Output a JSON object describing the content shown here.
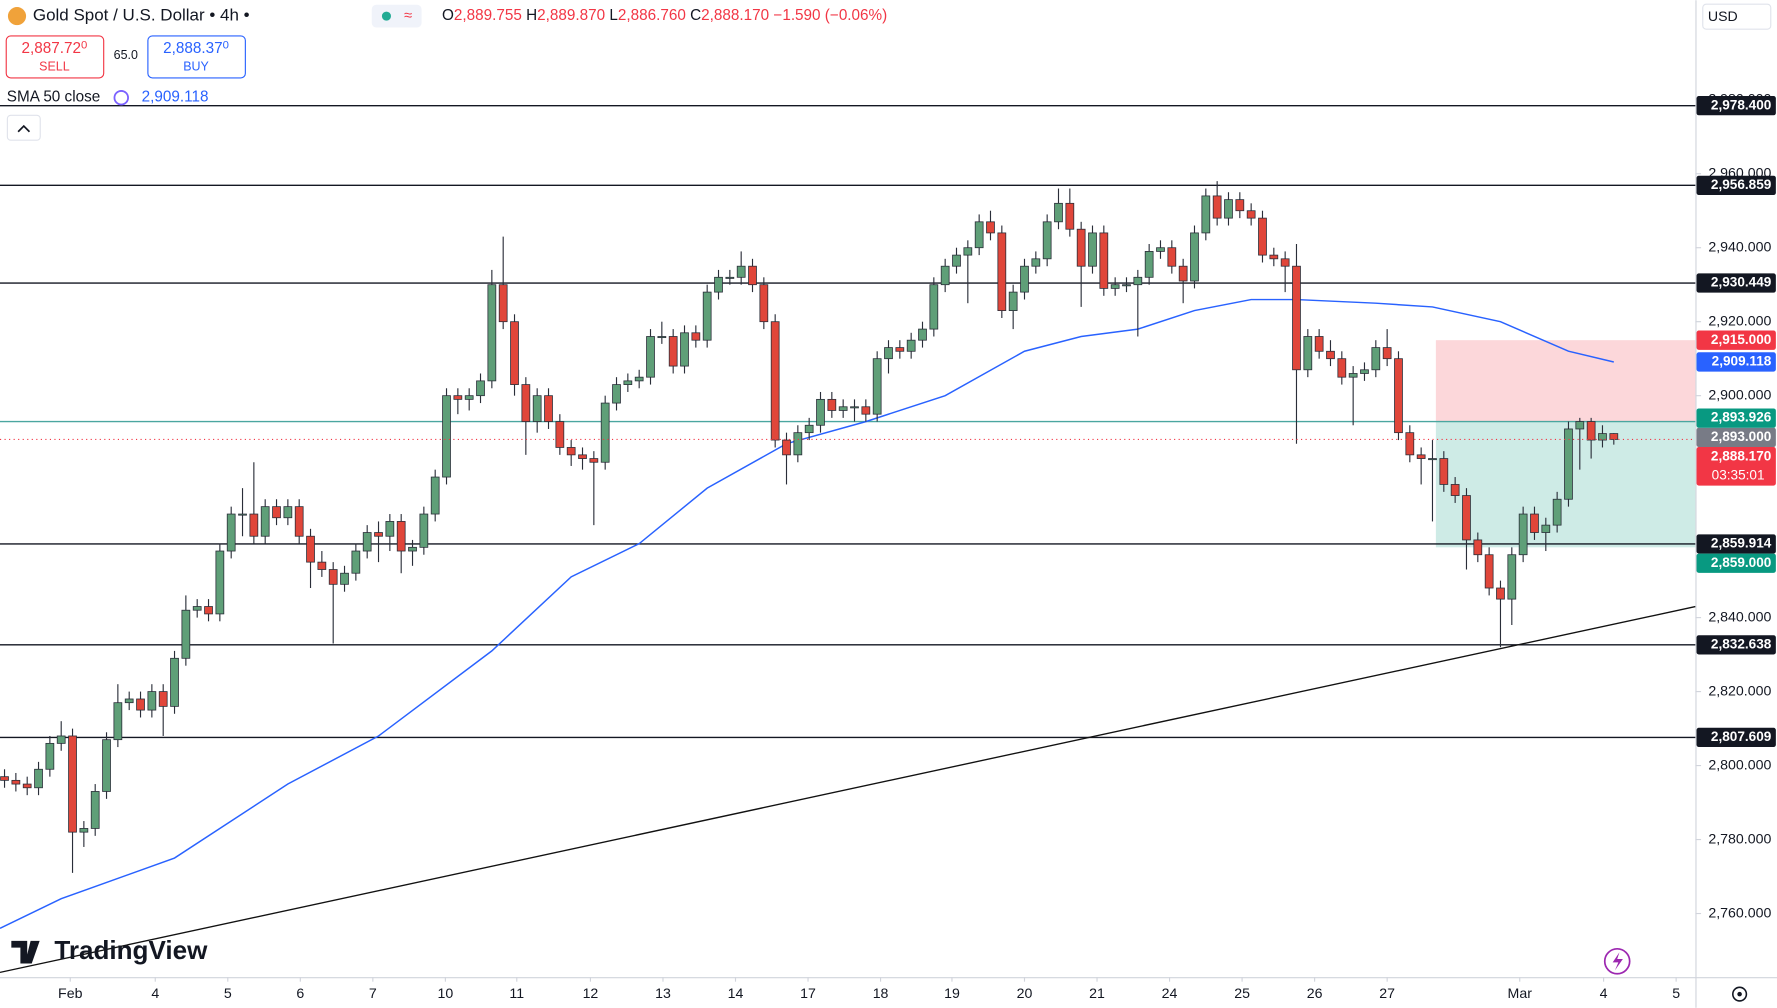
{
  "header": {
    "symbol": "Gold Spot / U.S. Dollar • 4h •",
    "ohlc": [
      {
        "k": "O",
        "v": "2,889.755"
      },
      {
        "k": "H",
        "v": "2,889.870"
      },
      {
        "k": "L",
        "v": "2,886.760"
      },
      {
        "k": "C",
        "v": "2,888.170"
      }
    ],
    "change": "−1.590 (−0.06%)",
    "sell": {
      "price": "2,887.72",
      "sup": "0",
      "label": "SELL"
    },
    "spread": "65.0",
    "buy": {
      "price": "2,888.37",
      "sup": "0",
      "label": "BUY"
    },
    "currency": "USD",
    "brand": "TradingView"
  },
  "chart_data": {
    "type": "candlestick",
    "up_color": "#5f9f78",
    "down_color": "#e0463a",
    "xlim": [
      -0.4,
      149.2
    ],
    "ylim": [
      2742.8,
      3006.9
    ],
    "xticks": [
      {
        "value": 5.8,
        "label": "Feb"
      },
      {
        "value": 13.3,
        "label": "4"
      },
      {
        "value": 19.7,
        "label": "5"
      },
      {
        "value": 26.1,
        "label": "6"
      },
      {
        "value": 32.5,
        "label": "7"
      },
      {
        "value": 38.9,
        "label": "10"
      },
      {
        "value": 45.2,
        "label": "11"
      },
      {
        "value": 51.7,
        "label": "12"
      },
      {
        "value": 58.1,
        "label": "13"
      },
      {
        "value": 64.5,
        "label": "14"
      },
      {
        "value": 70.9,
        "label": "17"
      },
      {
        "value": 77.3,
        "label": "18"
      },
      {
        "value": 83.6,
        "label": "19"
      },
      {
        "value": 90,
        "label": "20"
      },
      {
        "value": 96.4,
        "label": "21"
      },
      {
        "value": 102.8,
        "label": "24"
      },
      {
        "value": 109.2,
        "label": "25"
      },
      {
        "value": 115.6,
        "label": "26"
      },
      {
        "value": 122,
        "label": "27"
      },
      {
        "value": 133.7,
        "label": "Mar"
      },
      {
        "value": 141.1,
        "label": "4"
      },
      {
        "value": 147.5,
        "label": "5"
      }
    ],
    "yticks": [
      {
        "value": 2760,
        "label": "2,760.000"
      },
      {
        "value": 2780,
        "label": "2,780.000"
      },
      {
        "value": 2800,
        "label": "2,800.000"
      },
      {
        "value": 2820,
        "label": "2,820.000"
      },
      {
        "value": 2840,
        "label": "2,840.000"
      },
      {
        "value": 2860,
        "label": "2,860.000"
      },
      {
        "value": 2880,
        "label": "2,880.000"
      },
      {
        "value": 2900,
        "label": "2,900.000"
      },
      {
        "value": 2920,
        "label": "2,920.000"
      },
      {
        "value": 2940,
        "label": "2,940.000"
      },
      {
        "value": 2960,
        "label": "2,960.000"
      },
      {
        "value": 2980,
        "label": "2,980.000"
      }
    ],
    "ohlc": [
      [
        2797,
        2799,
        2794,
        2796
      ],
      [
        2796,
        2798,
        2793,
        2795
      ],
      [
        2795,
        2797,
        2792,
        2794
      ],
      [
        2794,
        2801,
        2792,
        2799
      ],
      [
        2799,
        2808,
        2797,
        2806
      ],
      [
        2806,
        2812,
        2804,
        2808
      ],
      [
        2808,
        2810,
        2771,
        2782
      ],
      [
        2782,
        2785,
        2778,
        2783
      ],
      [
        2783,
        2795,
        2781,
        2793
      ],
      [
        2793,
        2809,
        2791,
        2807
      ],
      [
        2807,
        2822,
        2805,
        2817
      ],
      [
        2817,
        2820,
        2815,
        2818
      ],
      [
        2818,
        2820,
        2813,
        2815
      ],
      [
        2815,
        2822,
        2813,
        2820
      ],
      [
        2820,
        2822,
        2808,
        2816
      ],
      [
        2816,
        2831,
        2814,
        2829
      ],
      [
        2829,
        2846,
        2827,
        2842
      ],
      [
        2842,
        2845,
        2840,
        2843
      ],
      [
        2843,
        2845,
        2839,
        2841
      ],
      [
        2841,
        2860,
        2839,
        2858
      ],
      [
        2858,
        2870,
        2856,
        2868
      ],
      [
        2868,
        2875,
        2862,
        2868
      ],
      [
        2868,
        2882,
        2860,
        2862
      ],
      [
        2862,
        2872,
        2860,
        2870
      ],
      [
        2870,
        2872,
        2865,
        2867
      ],
      [
        2867,
        2872,
        2865,
        2870
      ],
      [
        2870,
        2872,
        2860,
        2862
      ],
      [
        2862,
        2864,
        2848,
        2855
      ],
      [
        2855,
        2858,
        2851,
        2853
      ],
      [
        2853,
        2855,
        2833,
        2849
      ],
      [
        2849,
        2854,
        2847,
        2852
      ],
      [
        2852,
        2860,
        2850,
        2858
      ],
      [
        2858,
        2865,
        2856,
        2863
      ],
      [
        2863,
        2866,
        2855,
        2862
      ],
      [
        2862,
        2868,
        2858,
        2866
      ],
      [
        2866,
        2868,
        2852,
        2858
      ],
      [
        2858,
        2861,
        2854,
        2859
      ],
      [
        2859,
        2870,
        2857,
        2868
      ],
      [
        2868,
        2880,
        2866,
        2878
      ],
      [
        2878,
        2902,
        2876,
        2900
      ],
      [
        2900,
        2902,
        2895,
        2899
      ],
      [
        2899,
        2902,
        2896,
        2900
      ],
      [
        2900,
        2906,
        2898,
        2904
      ],
      [
        2904,
        2934,
        2902,
        2930
      ],
      [
        2930,
        2943,
        2918,
        2920
      ],
      [
        2920,
        2922,
        2900,
        2903
      ],
      [
        2903,
        2905,
        2884,
        2893
      ],
      [
        2893,
        2902,
        2890,
        2900
      ],
      [
        2900,
        2902,
        2891,
        2893
      ],
      [
        2893,
        2895,
        2884,
        2886
      ],
      [
        2886,
        2888,
        2881,
        2884
      ],
      [
        2884,
        2886,
        2880,
        2883
      ],
      [
        2883,
        2885,
        2865,
        2882
      ],
      [
        2882,
        2900,
        2880,
        2898
      ],
      [
        2898,
        2905,
        2896,
        2903
      ],
      [
        2903,
        2906,
        2901,
        2904
      ],
      [
        2904,
        2907,
        2902,
        2905
      ],
      [
        2905,
        2918,
        2903,
        2916
      ],
      [
        2916,
        2920,
        2914,
        2916
      ],
      [
        2916,
        2918,
        2906,
        2908
      ],
      [
        2908,
        2919,
        2906,
        2917
      ],
      [
        2917,
        2919,
        2913,
        2915
      ],
      [
        2915,
        2930,
        2913,
        2928
      ],
      [
        2928,
        2934,
        2926,
        2932
      ],
      [
        2932,
        2934,
        2930,
        2932
      ],
      [
        2932,
        2939,
        2930,
        2935
      ],
      [
        2935,
        2937,
        2928,
        2930
      ],
      [
        2930,
        2932,
        2918,
        2920
      ],
      [
        2920,
        2922,
        2886,
        2888
      ],
      [
        2888,
        2890,
        2876,
        2884
      ],
      [
        2884,
        2892,
        2882,
        2890
      ],
      [
        2890,
        2894,
        2888,
        2892
      ],
      [
        2892,
        2901,
        2890,
        2899
      ],
      [
        2899,
        2901,
        2894,
        2896
      ],
      [
        2896,
        2899,
        2894,
        2897
      ],
      [
        2897,
        2899,
        2893,
        2897
      ],
      [
        2897,
        2899,
        2893,
        2895
      ],
      [
        2895,
        2912,
        2893,
        2910
      ],
      [
        2910,
        2915,
        2906,
        2913
      ],
      [
        2913,
        2915,
        2910,
        2912
      ],
      [
        2912,
        2917,
        2910,
        2915
      ],
      [
        2915,
        2920,
        2913,
        2918
      ],
      [
        2918,
        2932,
        2916,
        2930
      ],
      [
        2930,
        2937,
        2928,
        2935
      ],
      [
        2935,
        2940,
        2933,
        2938
      ],
      [
        2938,
        2942,
        2925,
        2940
      ],
      [
        2940,
        2949,
        2938,
        2947
      ],
      [
        2947,
        2950,
        2942,
        2944
      ],
      [
        2944,
        2946,
        2921,
        2923
      ],
      [
        2923,
        2930,
        2918,
        2928
      ],
      [
        2928,
        2937,
        2926,
        2935
      ],
      [
        2935,
        2939,
        2933,
        2937
      ],
      [
        2937,
        2949,
        2935,
        2947
      ],
      [
        2947,
        2956,
        2945,
        2952
      ],
      [
        2952,
        2956,
        2943,
        2945
      ],
      [
        2945,
        2947,
        2924,
        2935
      ],
      [
        2935,
        2946,
        2933,
        2944
      ],
      [
        2944,
        2946,
        2927,
        2929
      ],
      [
        2929,
        2932,
        2927,
        2930
      ],
      [
        2930,
        2932,
        2928,
        2930
      ],
      [
        2930,
        2934,
        2916,
        2932
      ],
      [
        2932,
        2941,
        2930,
        2939
      ],
      [
        2939,
        2942,
        2937,
        2940
      ],
      [
        2940,
        2942,
        2933,
        2935
      ],
      [
        2935,
        2937,
        2925,
        2931
      ],
      [
        2931,
        2946,
        2929,
        2944
      ],
      [
        2944,
        2956,
        2942,
        2954
      ],
      [
        2954,
        2958,
        2946,
        2948
      ],
      [
        2948,
        2955,
        2946,
        2953
      ],
      [
        2953,
        2955,
        2948,
        2950
      ],
      [
        2950,
        2952,
        2946,
        2948
      ],
      [
        2948,
        2950,
        2936,
        2938
      ],
      [
        2938,
        2940,
        2935,
        2937
      ],
      [
        2937,
        2939,
        2928,
        2935
      ],
      [
        2935,
        2941,
        2887,
        2907
      ],
      [
        2907,
        2918,
        2905,
        2916
      ],
      [
        2916,
        2918,
        2910,
        2912
      ],
      [
        2912,
        2915,
        2908,
        2910
      ],
      [
        2910,
        2912,
        2903,
        2905
      ],
      [
        2905,
        2908,
        2892,
        2906
      ],
      [
        2906,
        2909,
        2904,
        2907
      ],
      [
        2907,
        2915,
        2905,
        2913
      ],
      [
        2913,
        2918,
        2908,
        2910
      ],
      [
        2910,
        2912,
        2888,
        2890
      ],
      [
        2890,
        2892,
        2882,
        2884
      ],
      [
        2884,
        2886,
        2876,
        2883
      ],
      [
        2883,
        2888,
        2866,
        2883
      ],
      [
        2883,
        2885,
        2874,
        2876
      ],
      [
        2876,
        2878,
        2871,
        2873
      ],
      [
        2873,
        2875,
        2853,
        2861
      ],
      [
        2861,
        2863,
        2855,
        2857
      ],
      [
        2857,
        2859,
        2846,
        2848
      ],
      [
        2848,
        2850,
        2832,
        2845
      ],
      [
        2845,
        2859,
        2838,
        2857
      ],
      [
        2857,
        2870,
        2855,
        2868
      ],
      [
        2868,
        2870,
        2861,
        2863
      ],
      [
        2863,
        2867,
        2858,
        2865
      ],
      [
        2865,
        2874,
        2863,
        2872
      ],
      [
        2872,
        2893,
        2870,
        2891
      ],
      [
        2891,
        2894,
        2880,
        2893
      ],
      [
        2893,
        2894,
        2883,
        2888
      ],
      [
        2888,
        2892,
        2886,
        2889.755
      ],
      [
        2889.755,
        2889.87,
        2886.76,
        2888.17
      ]
    ],
    "sma": {
      "name": "SMA 50 close",
      "color": "#2962ff",
      "value_label": "2,909.118",
      "x": [
        -0.4,
        5,
        15,
        25,
        33,
        43,
        50,
        56,
        62,
        69,
        76,
        83,
        90,
        95,
        100,
        105,
        110,
        114,
        121,
        126,
        132,
        138,
        142
      ],
      "values": [
        2756,
        2764,
        2775,
        2795,
        2808,
        2831,
        2851,
        2860,
        2875,
        2887,
        2893,
        2900,
        2912,
        2916,
        2918,
        2923,
        2926,
        2926,
        2925,
        2924,
        2920,
        2912,
        2909.118
      ]
    },
    "trendline": {
      "color": "#111111",
      "x": [
        -0.4,
        149.2
      ],
      "values": [
        2744.1,
        2843.0
      ]
    },
    "levels": [
      {
        "value": 2978.4,
        "label": "2,978.400"
      },
      {
        "value": 2956.859,
        "label": "2,956.859"
      },
      {
        "value": 2930.449,
        "label": "2,930.449"
      },
      {
        "value": 2859.914,
        "label": "2,859.914"
      },
      {
        "value": 2832.638,
        "label": "2,832.638"
      },
      {
        "value": 2807.609,
        "label": "2,807.609"
      }
    ],
    "position": {
      "x_start": 126.3,
      "stop": {
        "value": 2915,
        "label": "2,915.000",
        "color": "#f23645"
      },
      "entry": {
        "value": 2893,
        "label": "2,893.000",
        "color": "#787b86"
      },
      "target": {
        "value": 2859,
        "label": "2,859.000",
        "color": "#089981"
      }
    },
    "high_tag": {
      "value": 2893.926,
      "label": "2,893.926",
      "color": "#089981"
    },
    "last_price": {
      "value": 2888.17,
      "label": "2,888.170",
      "countdown": "03:35:01",
      "color": "#f23645"
    }
  }
}
